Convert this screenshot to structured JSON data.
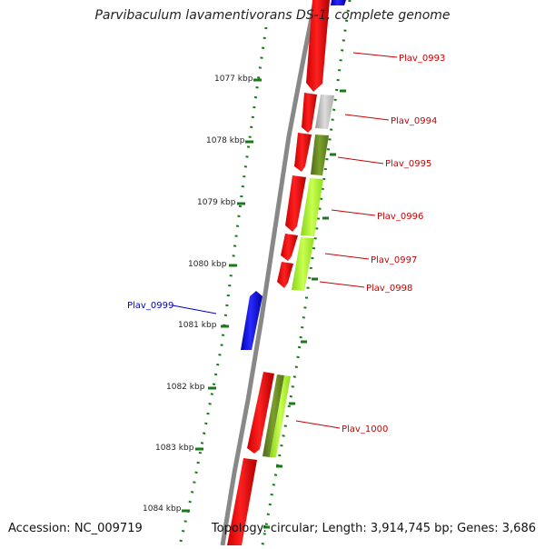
{
  "header": {
    "title": "Parvibaculum lavamentivorans DS-1, complete genome"
  },
  "footer": {
    "accession": "Accession: NC_009719",
    "summary": "Topology: circular; Length: 3,914,745 bp; Genes: 3,686"
  },
  "scale": {
    "ticks": [
      "1077 kbp",
      "1078 kbp",
      "1079 kbp",
      "1080 kbp",
      "1081 kbp",
      "1082 kbp",
      "1083 kbp",
      "1084 kbp"
    ]
  },
  "genes": {
    "labels": [
      {
        "name": "Plav_0993",
        "strand": "+",
        "color": "#cc0000"
      },
      {
        "name": "Plav_0994",
        "strand": "+",
        "color": "#cc0000"
      },
      {
        "name": "Plav_0995",
        "strand": "+",
        "color": "#cc0000"
      },
      {
        "name": "Plav_0996",
        "strand": "+",
        "color": "#cc0000"
      },
      {
        "name": "Plav_0997",
        "strand": "+",
        "color": "#cc0000"
      },
      {
        "name": "Plav_0998",
        "strand": "+",
        "color": "#cc0000"
      },
      {
        "name": "Plav_0999",
        "strand": "-",
        "color": "#0000cc"
      },
      {
        "name": "Plav_1000",
        "strand": "+",
        "color": "#cc0000"
      }
    ]
  },
  "colors": {
    "forward_cds": "#ff0000",
    "reverse_cds": "#0000ff",
    "backbone": "#888888",
    "gc_ring": "#1a7a1a",
    "gray_feature": "#bbbbbb",
    "dark_green_feature": "#6b8e23",
    "light_green_feature": "#adff2f"
  }
}
